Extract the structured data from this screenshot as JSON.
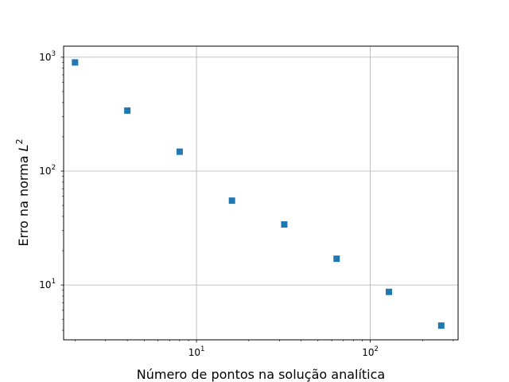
{
  "chart_data": {
    "type": "scatter",
    "xscale": "log",
    "yscale": "log",
    "xlabel": "Número de pontos na solução analítica",
    "ylabel": "Erro na norma L^2",
    "ylabel_main": "Erro na norma ",
    "ylabel_var": "L",
    "ylabel_exp": "2",
    "xlim": [
      1.72,
      320
    ],
    "ylim": [
      3.3,
      1250
    ],
    "grid": true,
    "marker": "square",
    "color": "#1f77b4",
    "x_ticks": [
      {
        "base": "10",
        "exp": "1",
        "value": 10
      },
      {
        "base": "10",
        "exp": "2",
        "value": 100
      }
    ],
    "y_ticks": [
      {
        "base": "10",
        "exp": "1",
        "value": 10
      },
      {
        "base": "10",
        "exp": "2",
        "value": 100
      },
      {
        "base": "10",
        "exp": "3",
        "value": 1000
      }
    ],
    "series": [
      {
        "x": [
          2,
          4,
          8,
          16,
          32,
          64,
          128,
          256
        ],
        "y": [
          900,
          340,
          148,
          55,
          34,
          17,
          8.7,
          4.4
        ]
      }
    ]
  }
}
